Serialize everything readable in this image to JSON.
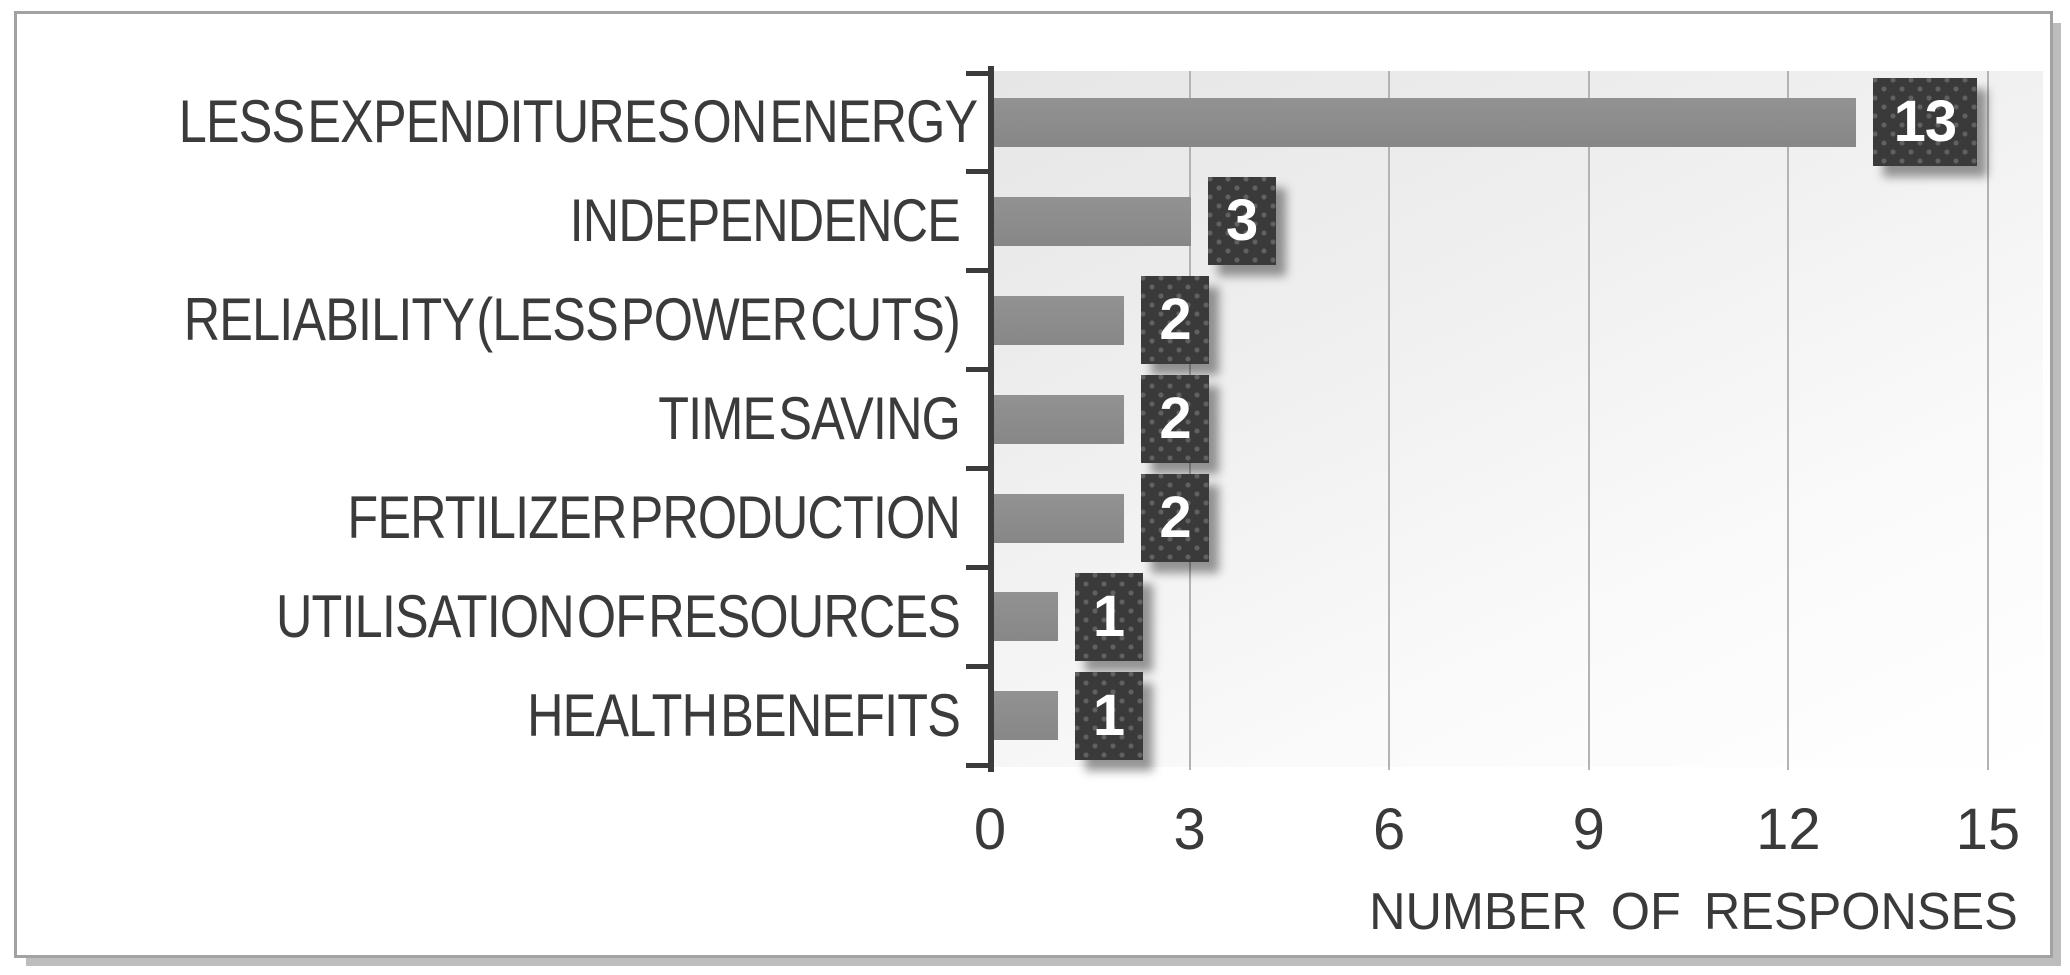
{
  "chart_data": {
    "type": "bar",
    "orientation": "horizontal",
    "title": "",
    "categories": [
      "LESS EXPENDITURES ON ENERGY",
      "INDEPENDENCE",
      "RELIABILITY (LESS POWER CUTS)",
      "TIME SAVING",
      "FERTILIZER PRODUCTION",
      "UTILISATION OF RESOURCES",
      "HEALTH BENEFITS"
    ],
    "values": [
      13,
      3,
      2,
      2,
      2,
      1,
      1
    ],
    "data_labels": [
      "13",
      "3",
      "2",
      "2",
      "2",
      "1",
      "1"
    ],
    "xlabel": "NUMBER OF RESPONSES",
    "ylabel": "",
    "xlim": [
      0,
      15
    ],
    "xticks": [
      "0",
      "3",
      "6",
      "9",
      "12",
      "15"
    ],
    "grid": "vertical-only",
    "legend": "none",
    "colors": {
      "bar": "#8d8d8d",
      "data_label_box": "#3a3a3a",
      "data_label_text": "#ffffff",
      "axis_line": "#3b3b3b",
      "gridline": "#b3b3b3",
      "tick_text": "#3a3a3a",
      "category_text": "#3b3b3b",
      "plot_background_start": "#e6e6e6",
      "plot_background_end": "#ffffff",
      "frame_border": "#a2a2a2",
      "frame_shadow": "#bdbdbd"
    }
  }
}
